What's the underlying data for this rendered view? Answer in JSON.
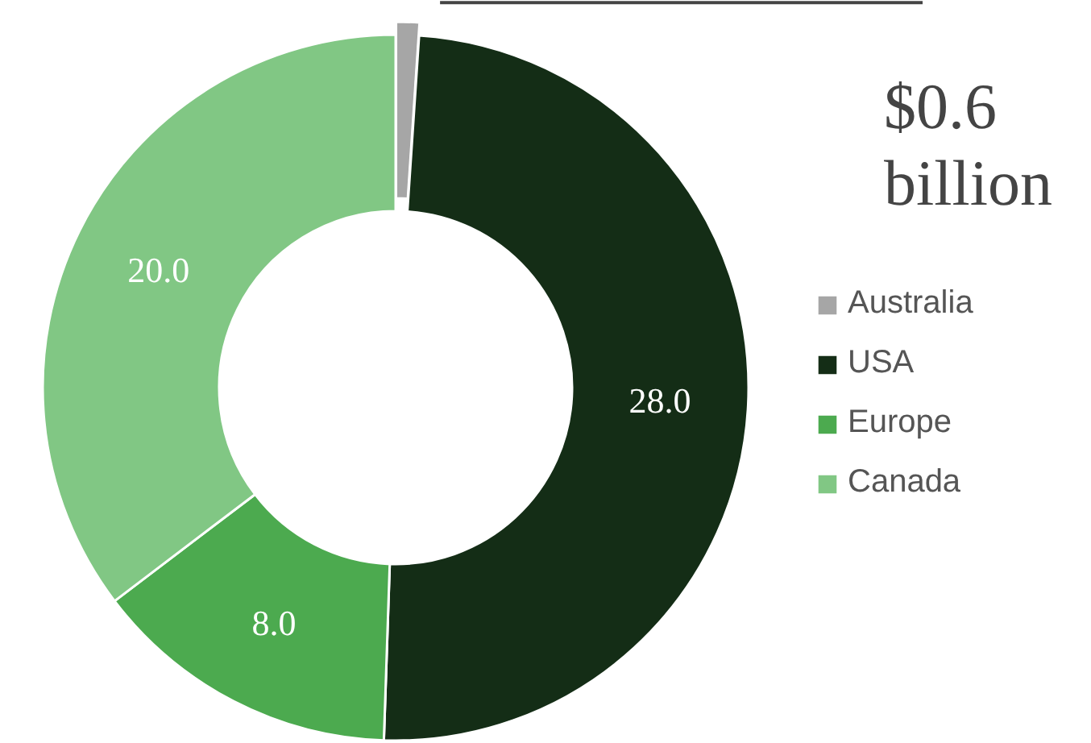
{
  "chart_data": {
    "type": "donut",
    "categories": [
      "Australia",
      "USA",
      "Europe",
      "Canada"
    ],
    "values": [
      0.6,
      28.0,
      8.0,
      20.0
    ],
    "colors": [
      "#a6a6a6",
      "#142d16",
      "#4caa4f",
      "#81c784"
    ],
    "value_labels": [
      "$0.6 billion",
      "28.0",
      "8.0",
      "20.0"
    ],
    "legend": "right"
  }
}
